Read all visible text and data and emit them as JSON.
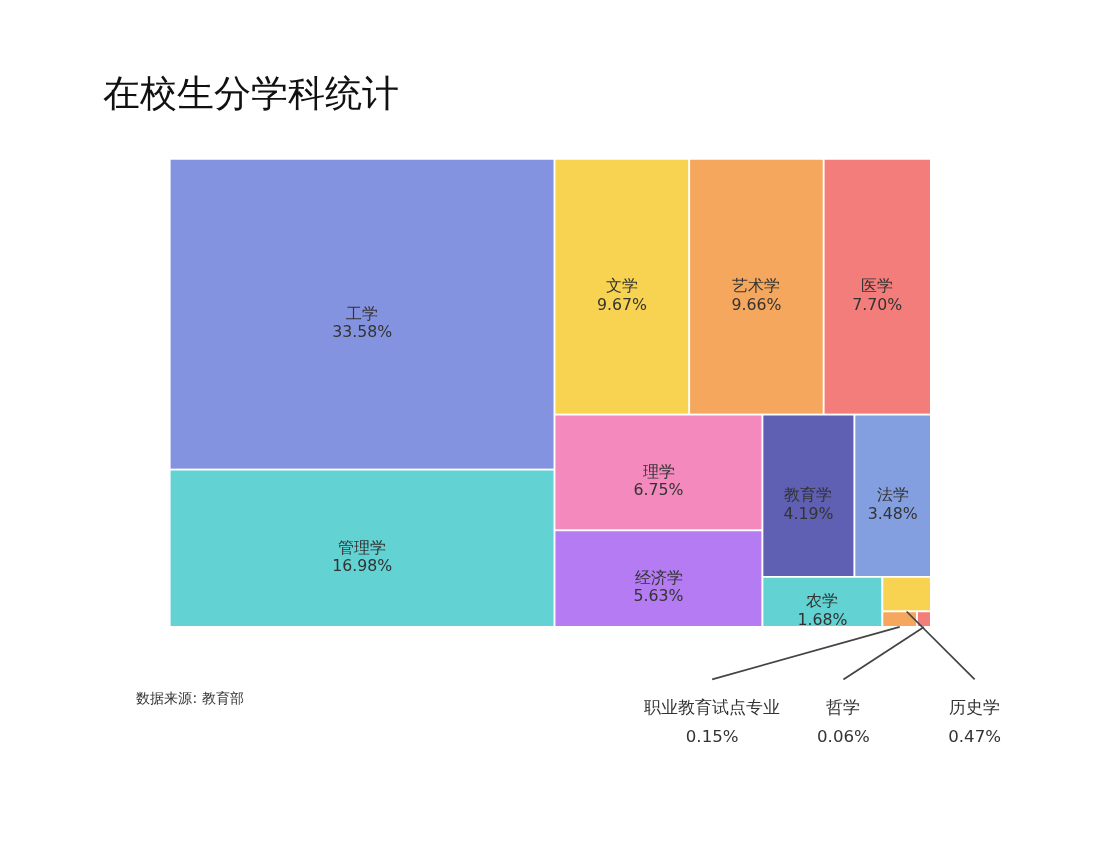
{
  "chart_data": {
    "type": "other",
    "title": "在校生分学科统计",
    "categories": [
      "工学",
      "管理学",
      "文学",
      "艺术学",
      "医学",
      "理学",
      "经济学",
      "教育学",
      "法学",
      "农学",
      "历史学",
      "职业教育试点专业",
      "哲学"
    ],
    "values": [
      33.58,
      16.98,
      9.67,
      9.66,
      7.7,
      6.75,
      5.63,
      4.19,
      3.48,
      1.68,
      0.47,
      0.15,
      0.06
    ],
    "value_labels": [
      "33.58%",
      "16.98%",
      "9.67%",
      "9.66%",
      "7.70%",
      "6.75%",
      "5.63%",
      "4.19%",
      "3.48%",
      "1.68%",
      "0.47%",
      "0.15%",
      "0.06%"
    ],
    "colors": [
      "#5b6fd6",
      "#2ec4c4",
      "#f5c518",
      "#f28c28",
      "#f0524f",
      "#f062a8",
      "#9b4ff0",
      "#2a2a9c",
      "#5b7fd6",
      "#2ec4c4",
      "#f5c518",
      "#f28c28",
      "#f0524f"
    ],
    "annotations": [
      "数据来源: 教育部"
    ]
  }
}
